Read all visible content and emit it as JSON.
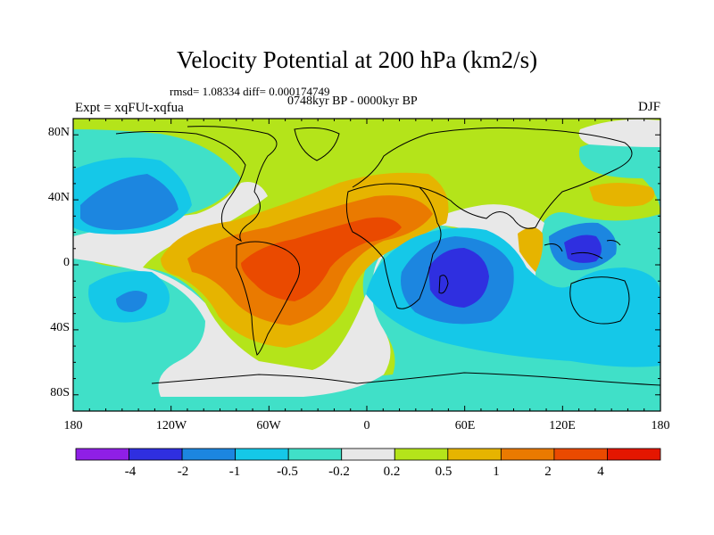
{
  "header": {
    "title": "Velocity Potential at 200 hPa (km2/s)",
    "stats": "rmsd= 1.08334 diff= 0.000174749",
    "experiment": "Expt = xqFUt-xqfua",
    "period": "0748kyr BP - 0000kyr BP",
    "season": "DJF"
  },
  "axes": {
    "y_ticks": [
      "80N",
      "40N",
      "0",
      "40S",
      "80S"
    ],
    "x_ticks": [
      "180",
      "120W",
      "60W",
      "0",
      "60E",
      "120E",
      "180"
    ]
  },
  "colorbar": {
    "colors": [
      "#8f1fe6",
      "#2f2fe0",
      "#1c86e0",
      "#15c8e8",
      "#40e0c8",
      "#e8e8e8",
      "#b4e41a",
      "#e6b400",
      "#ea7a00",
      "#ea4a00",
      "#e41600"
    ],
    "labels": [
      "-4",
      "-2",
      "-1",
      "-0.5",
      "-0.2",
      "0.2",
      "0.5",
      "1",
      "2",
      "4"
    ]
  },
  "map": {
    "background_color": "#40e0c8",
    "levels": {
      "neutral": "#e8e8e8",
      "pos_0_2": "#b4e41a",
      "pos_0_5": "#e6b400",
      "pos_1": "#ea7a00",
      "pos_2": "#ea4a00",
      "neg_0_2": "#40e0c8",
      "neg_0_5": "#15c8e8",
      "neg_1": "#1c86e0",
      "neg_2": "#2f2fe0"
    }
  }
}
